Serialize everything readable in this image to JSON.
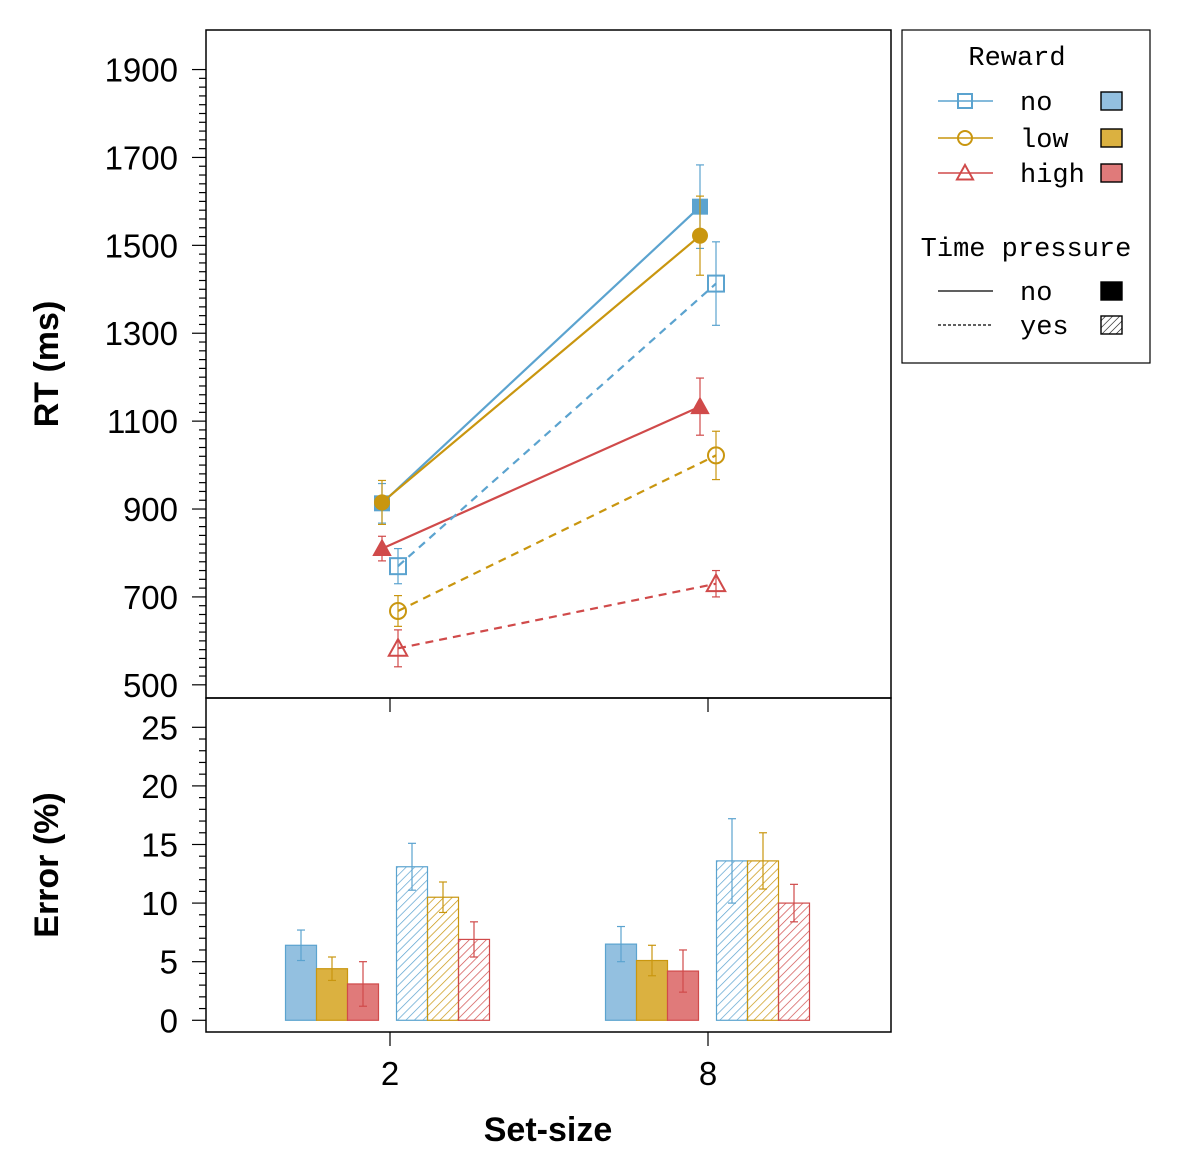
{
  "chart_data": [
    {
      "type": "line",
      "panel": "top",
      "ylabel": "RT (ms)",
      "ylim": [
        470,
        1990
      ],
      "yticks": [
        500,
        700,
        900,
        1100,
        1300,
        1500,
        1700,
        1900
      ],
      "categories": [
        "2",
        "8"
      ],
      "series": [
        {
          "name": "no reward, no time pressure",
          "reward": "no",
          "time_pressure": "no",
          "values": [
            913,
            1588
          ],
          "errors": [
            45,
            95
          ]
        },
        {
          "name": "low reward, no time pressure",
          "reward": "low",
          "time_pressure": "no",
          "values": [
            915,
            1522
          ],
          "errors": [
            50,
            90
          ]
        },
        {
          "name": "high reward, no time pressure",
          "reward": "high",
          "time_pressure": "no",
          "values": [
            810,
            1133
          ],
          "errors": [
            28,
            65
          ]
        },
        {
          "name": "no reward, time pressure",
          "reward": "no",
          "time_pressure": "yes",
          "values": [
            770,
            1413
          ],
          "errors": [
            40,
            95
          ]
        },
        {
          "name": "low reward, time pressure",
          "reward": "low",
          "time_pressure": "yes",
          "values": [
            668,
            1022
          ],
          "errors": [
            35,
            55
          ]
        },
        {
          "name": "high reward, time pressure",
          "reward": "high",
          "time_pressure": "yes",
          "values": [
            583,
            730
          ],
          "errors": [
            42,
            30
          ]
        }
      ]
    },
    {
      "type": "bar",
      "panel": "bottom",
      "ylabel": "Error (%)",
      "xlabel": "Set-size",
      "ylim": [
        -1,
        27.5
      ],
      "yticks": [
        0,
        5,
        10,
        15,
        20,
        25
      ],
      "categories": [
        "2",
        "8"
      ],
      "series": [
        {
          "name": "no reward, no time pressure",
          "reward": "no",
          "time_pressure": "no",
          "values": [
            6.4,
            6.5
          ],
          "errors": [
            1.3,
            1.5
          ]
        },
        {
          "name": "low reward, no time pressure",
          "reward": "low",
          "time_pressure": "no",
          "values": [
            4.4,
            5.1
          ],
          "errors": [
            1.0,
            1.3
          ]
        },
        {
          "name": "high reward, no time pressure",
          "reward": "high",
          "time_pressure": "no",
          "values": [
            3.1,
            4.2
          ],
          "errors": [
            1.9,
            1.8
          ]
        },
        {
          "name": "no reward, time pressure",
          "reward": "no",
          "time_pressure": "yes",
          "values": [
            13.1,
            13.6
          ],
          "errors": [
            2.0,
            3.6
          ]
        },
        {
          "name": "low reward, time pressure",
          "reward": "low",
          "time_pressure": "yes",
          "values": [
            10.5,
            13.6
          ],
          "errors": [
            1.3,
            2.4
          ]
        },
        {
          "name": "high reward, time pressure",
          "reward": "high",
          "time_pressure": "yes",
          "values": [
            6.9,
            10.0
          ],
          "errors": [
            1.5,
            1.6
          ]
        }
      ]
    }
  ],
  "legend": {
    "reward_title": "Reward",
    "reward_items": [
      {
        "key": "no",
        "label": "no"
      },
      {
        "key": "low",
        "label": "low"
      },
      {
        "key": "high",
        "label": "high"
      }
    ],
    "pressure_title": "Time pressure",
    "pressure_items": [
      {
        "key": "no",
        "label": "no"
      },
      {
        "key": "yes",
        "label": "yes"
      }
    ]
  },
  "colors": {
    "no": "#5ba3cf",
    "low": "#c9960f",
    "high": "#d04a4a",
    "no_fill": "#93c0e0",
    "low_fill": "#dbb140",
    "high_fill": "#e07a7a"
  }
}
